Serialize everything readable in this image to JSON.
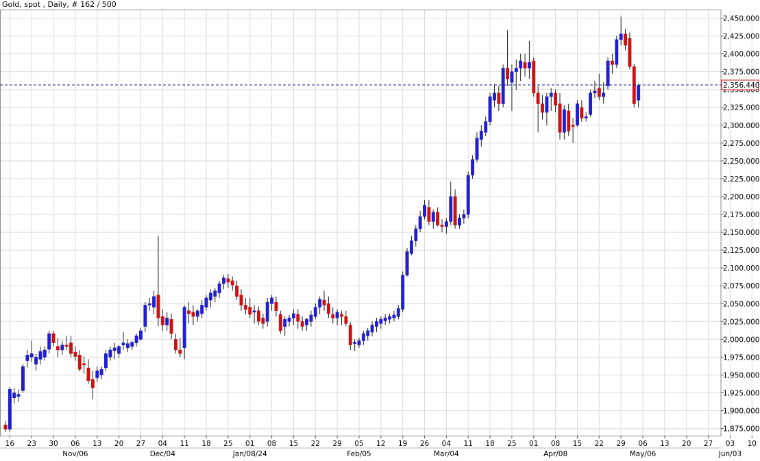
{
  "title": "Gold, spot , Daily, # 162 / 500",
  "current_price_label": "2,356.440",
  "colors": {
    "up": "#1f1fd0",
    "down": "#cc1111",
    "grid": "#dcdcdc",
    "price_line": "#1a1a8c",
    "price_label_border": "#cc1111"
  },
  "chart_data": {
    "type": "candlestick",
    "title": "Gold, spot , Daily, # 162 / 500",
    "ylim": [
      1865,
      2462
    ],
    "y_ticks": [
      1875,
      1900,
      1925,
      1950,
      1975,
      2000,
      2025,
      2050,
      2075,
      2100,
      2125,
      2150,
      2175,
      2200,
      2225,
      2250,
      2275,
      2300,
      2325,
      2350,
      2375,
      2400,
      2425,
      2450
    ],
    "y_tick_labels": [
      "1,875.000",
      "1,900.000",
      "1,925.000",
      "1,950.000",
      "1,975.000",
      "2,000.000",
      "2,025.000",
      "2,050.000",
      "2,075.000",
      "2,100.000",
      "2,125.000",
      "2,150.000",
      "2,175.000",
      "2,200.000",
      "2,225.000",
      "2,250.000",
      "2,275.000",
      "2,300.000",
      "2,325.000",
      "2,350.000",
      "2,375.000",
      "2,400.000",
      "2,425.000",
      "2,450.000"
    ],
    "x_tick_labels": [
      {
        "i": 1,
        "label": "16"
      },
      {
        "i": 6,
        "label": "23"
      },
      {
        "i": 11,
        "label": "30"
      },
      {
        "i": 16,
        "label": "06"
      },
      {
        "i": 21,
        "label": "13"
      },
      {
        "i": 26,
        "label": "20"
      },
      {
        "i": 31,
        "label": "27"
      },
      {
        "i": 36,
        "label": "04"
      },
      {
        "i": 41,
        "label": "11"
      },
      {
        "i": 46,
        "label": "18"
      },
      {
        "i": 51,
        "label": "25"
      },
      {
        "i": 56,
        "label": "01"
      },
      {
        "i": 61,
        "label": "08"
      },
      {
        "i": 66,
        "label": "15"
      },
      {
        "i": 71,
        "label": "22"
      },
      {
        "i": 76,
        "label": "29"
      },
      {
        "i": 81,
        "label": "05"
      },
      {
        "i": 86,
        "label": "12"
      },
      {
        "i": 91,
        "label": "19"
      },
      {
        "i": 96,
        "label": "26"
      },
      {
        "i": 101,
        "label": "04"
      },
      {
        "i": 106,
        "label": "11"
      },
      {
        "i": 111,
        "label": "18"
      },
      {
        "i": 116,
        "label": "25"
      },
      {
        "i": 121,
        "label": "01"
      },
      {
        "i": 126,
        "label": "08"
      },
      {
        "i": 131,
        "label": "15"
      },
      {
        "i": 136,
        "label": "22"
      },
      {
        "i": 141,
        "label": "29"
      },
      {
        "i": 146,
        "label": "06"
      },
      {
        "i": 151,
        "label": "13"
      },
      {
        "i": 156,
        "label": "20"
      },
      {
        "i": 161,
        "label": "27"
      },
      {
        "i": 166,
        "label": "03"
      },
      {
        "i": 171,
        "label": "10"
      }
    ],
    "x_month_labels": [
      {
        "i": 16,
        "label": "Nov/06"
      },
      {
        "i": 36,
        "label": "Dec/04"
      },
      {
        "i": 56,
        "label": "Jan/08/24"
      },
      {
        "i": 81,
        "label": "Feb/05"
      },
      {
        "i": 101,
        "label": "Mar/04"
      },
      {
        "i": 126,
        "label": "Apr/08"
      },
      {
        "i": 146,
        "label": "May/06"
      },
      {
        "i": 166,
        "label": "Jun/03"
      }
    ],
    "current_price": 2356.44,
    "candles": [
      [
        1880,
        1886,
        1870,
        1874
      ],
      [
        1874,
        1933,
        1870,
        1930
      ],
      [
        1918,
        1932,
        1910,
        1925
      ],
      [
        1920,
        1930,
        1912,
        1923
      ],
      [
        1928,
        1965,
        1925,
        1962
      ],
      [
        1970,
        1985,
        1960,
        1978
      ],
      [
        1975,
        1998,
        1968,
        1980
      ],
      [
        1965,
        1980,
        1956,
        1975
      ],
      [
        1972,
        1990,
        1965,
        1983
      ],
      [
        1975,
        1990,
        1970,
        1985
      ],
      [
        1986,
        2012,
        1980,
        2008
      ],
      [
        2008,
        2012,
        1990,
        1995
      ],
      [
        1990,
        2002,
        1975,
        1985
      ],
      [
        1985,
        1998,
        1978,
        1992
      ],
      [
        1992,
        2005,
        1985,
        1990
      ],
      [
        1995,
        2005,
        1975,
        1980
      ],
      [
        1982,
        1990,
        1970,
        1976
      ],
      [
        1978,
        1985,
        1955,
        1958
      ],
      [
        1966,
        1976,
        1952,
        1964
      ],
      [
        1960,
        1972,
        1938,
        1942
      ],
      [
        1944,
        1956,
        1916,
        1932
      ],
      [
        1946,
        1962,
        1940,
        1956
      ],
      [
        1950,
        1962,
        1944,
        1958
      ],
      [
        1960,
        1985,
        1955,
        1980
      ],
      [
        1975,
        1990,
        1970,
        1985
      ],
      [
        1984,
        1995,
        1972,
        1988
      ],
      [
        1980,
        1992,
        1974,
        1990
      ],
      [
        1992,
        2010,
        1985,
        1995
      ],
      [
        1988,
        2000,
        1982,
        1994
      ],
      [
        1990,
        1998,
        1985,
        1996
      ],
      [
        1995,
        2008,
        1990,
        2005
      ],
      [
        2000,
        2016,
        1998,
        2012
      ],
      [
        2018,
        2052,
        2010,
        2048
      ],
      [
        2048,
        2058,
        2040,
        2050
      ],
      [
        2045,
        2068,
        2035,
        2060
      ],
      [
        2062,
        2145,
        2018,
        2030
      ],
      [
        2032,
        2042,
        2012,
        2020
      ],
      [
        2020,
        2038,
        2012,
        2030
      ],
      [
        2028,
        2036,
        2000,
        2008
      ],
      [
        2000,
        2008,
        1980,
        1985
      ],
      [
        1985,
        2002,
        1975,
        1980
      ],
      [
        1988,
        2048,
        1972,
        2045
      ],
      [
        2040,
        2052,
        2022,
        2036
      ],
      [
        2038,
        2048,
        2020,
        2032
      ],
      [
        2032,
        2042,
        2025,
        2040
      ],
      [
        2036,
        2055,
        2030,
        2048
      ],
      [
        2045,
        2062,
        2040,
        2058
      ],
      [
        2055,
        2070,
        2045,
        2065
      ],
      [
        2060,
        2072,
        2052,
        2068
      ],
      [
        2065,
        2082,
        2058,
        2078
      ],
      [
        2078,
        2090,
        2070,
        2086
      ],
      [
        2085,
        2092,
        2072,
        2080
      ],
      [
        2082,
        2088,
        2068,
        2076
      ],
      [
        2075,
        2082,
        2055,
        2060
      ],
      [
        2062,
        2070,
        2040,
        2048
      ],
      [
        2048,
        2058,
        2035,
        2042
      ],
      [
        2045,
        2058,
        2030,
        2035
      ],
      [
        2038,
        2048,
        2022,
        2040
      ],
      [
        2040,
        2046,
        2020,
        2025
      ],
      [
        2030,
        2036,
        2015,
        2022
      ],
      [
        2025,
        2058,
        2018,
        2052
      ],
      [
        2050,
        2062,
        2040,
        2058
      ],
      [
        2052,
        2060,
        2032,
        2040
      ],
      [
        2035,
        2040,
        2008,
        2012
      ],
      [
        2018,
        2032,
        2005,
        2028
      ],
      [
        2025,
        2034,
        2018,
        2030
      ],
      [
        2030,
        2042,
        2020,
        2036
      ],
      [
        2035,
        2042,
        2015,
        2025
      ],
      [
        2025,
        2032,
        2012,
        2018
      ],
      [
        2020,
        2030,
        2012,
        2028
      ],
      [
        2025,
        2040,
        2018,
        2034
      ],
      [
        2032,
        2050,
        2028,
        2045
      ],
      [
        2045,
        2060,
        2035,
        2056
      ],
      [
        2055,
        2068,
        2040,
        2048
      ],
      [
        2050,
        2060,
        2030,
        2036
      ],
      [
        2035,
        2045,
        2022,
        2030
      ],
      [
        2030,
        2042,
        2020,
        2038
      ],
      [
        2035,
        2040,
        2020,
        2032
      ],
      [
        2032,
        2040,
        2018,
        2022
      ],
      [
        2020,
        2024,
        1985,
        1992
      ],
      [
        1994,
        2000,
        1984,
        1996
      ],
      [
        1992,
        2002,
        1988,
        1998
      ],
      [
        1998,
        2012,
        1992,
        2008
      ],
      [
        2005,
        2016,
        1998,
        2012
      ],
      [
        2010,
        2025,
        2004,
        2020
      ],
      [
        2018,
        2030,
        2010,
        2025
      ],
      [
        2022,
        2032,
        2015,
        2028
      ],
      [
        2026,
        2035,
        2020,
        2030
      ],
      [
        2028,
        2036,
        2022,
        2032
      ],
      [
        2030,
        2040,
        2025,
        2034
      ],
      [
        2032,
        2048,
        2028,
        2043
      ],
      [
        2042,
        2095,
        2038,
        2090
      ],
      [
        2090,
        2128,
        2088,
        2123
      ],
      [
        2120,
        2145,
        2118,
        2138
      ],
      [
        2138,
        2160,
        2130,
        2155
      ],
      [
        2155,
        2180,
        2150,
        2172
      ],
      [
        2172,
        2195,
        2168,
        2188
      ],
      [
        2185,
        2195,
        2160,
        2165
      ],
      [
        2165,
        2182,
        2155,
        2178
      ],
      [
        2178,
        2185,
        2158,
        2160
      ],
      [
        2160,
        2168,
        2150,
        2158
      ],
      [
        2158,
        2170,
        2148,
        2165
      ],
      [
        2165,
        2221,
        2160,
        2200
      ],
      [
        2200,
        2210,
        2155,
        2160
      ],
      [
        2160,
        2175,
        2155,
        2170
      ],
      [
        2170,
        2182,
        2162,
        2175
      ],
      [
        2175,
        2235,
        2170,
        2230
      ],
      [
        2230,
        2258,
        2225,
        2252
      ],
      [
        2252,
        2290,
        2248,
        2282
      ],
      [
        2280,
        2300,
        2270,
        2292
      ],
      [
        2290,
        2312,
        2285,
        2305
      ],
      [
        2305,
        2345,
        2300,
        2340
      ],
      [
        2335,
        2358,
        2325,
        2345
      ],
      [
        2345,
        2355,
        2320,
        2330
      ],
      [
        2330,
        2385,
        2325,
        2380
      ],
      [
        2380,
        2433,
        2355,
        2365
      ],
      [
        2360,
        2385,
        2320,
        2375
      ],
      [
        2375,
        2392,
        2350,
        2380
      ],
      [
        2380,
        2400,
        2362,
        2390
      ],
      [
        2388,
        2400,
        2368,
        2380
      ],
      [
        2380,
        2418,
        2365,
        2388
      ],
      [
        2390,
        2395,
        2340,
        2345
      ],
      [
        2345,
        2355,
        2290,
        2330
      ],
      [
        2330,
        2342,
        2308,
        2318
      ],
      [
        2318,
        2345,
        2300,
        2340
      ],
      [
        2340,
        2352,
        2320,
        2345
      ],
      [
        2345,
        2350,
        2318,
        2328
      ],
      [
        2330,
        2345,
        2280,
        2290
      ],
      [
        2290,
        2328,
        2280,
        2322
      ],
      [
        2320,
        2330,
        2285,
        2292
      ],
      [
        2300,
        2310,
        2275,
        2298
      ],
      [
        2300,
        2335,
        2298,
        2330
      ],
      [
        2325,
        2335,
        2305,
        2310
      ],
      [
        2310,
        2318,
        2305,
        2312
      ],
      [
        2315,
        2350,
        2312,
        2345
      ],
      [
        2345,
        2362,
        2338,
        2348
      ],
      [
        2352,
        2372,
        2335,
        2340
      ],
      [
        2340,
        2360,
        2330,
        2345
      ],
      [
        2355,
        2395,
        2350,
        2390
      ],
      [
        2390,
        2400,
        2372,
        2385
      ],
      [
        2385,
        2425,
        2380,
        2420
      ],
      [
        2420,
        2452,
        2412,
        2428
      ],
      [
        2428,
        2435,
        2405,
        2412
      ],
      [
        2422,
        2430,
        2378,
        2382
      ],
      [
        2382,
        2386,
        2325,
        2330
      ],
      [
        2335,
        2358,
        2325,
        2356
      ]
    ]
  }
}
